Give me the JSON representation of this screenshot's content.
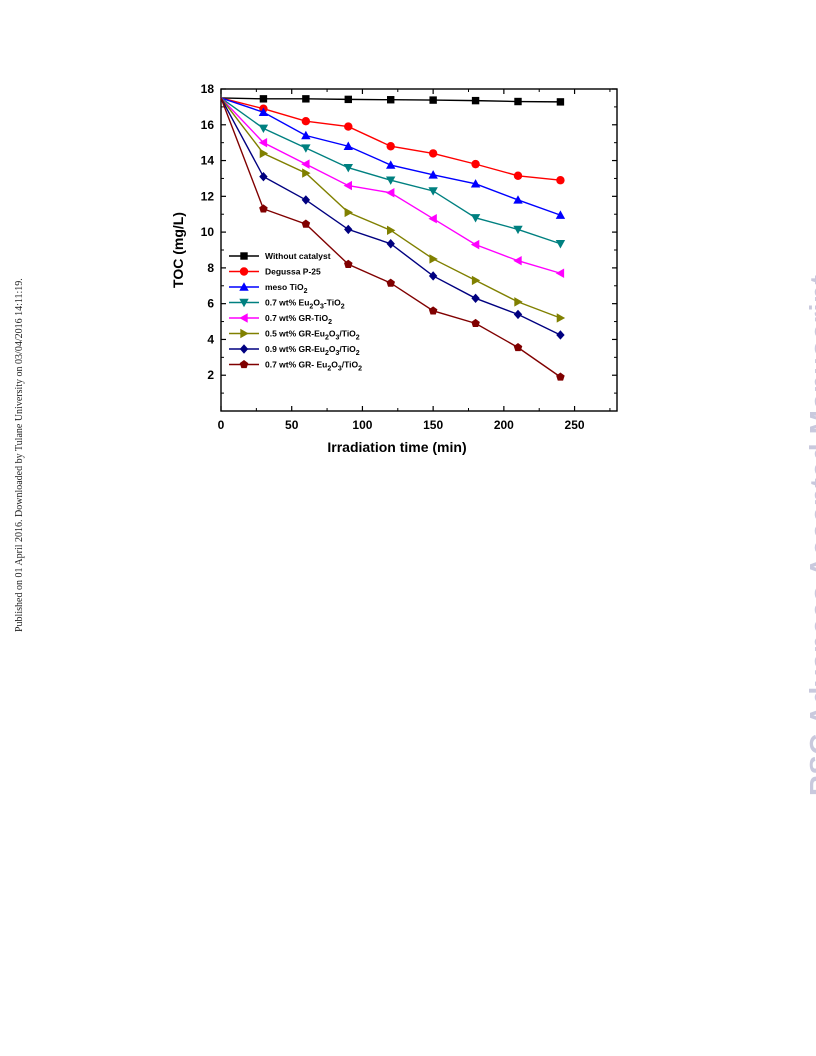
{
  "side_note": "Published on 01 April 2016. Downloaded by Tulane University on 03/04/2016 14:11:19.",
  "watermark": "RSC Advances Accepted Manuscript",
  "chart_data": {
    "type": "line",
    "title": "",
    "xlabel": "Irradiation time (min)",
    "ylabel": "TOC (mg/L)",
    "xlim": [
      0,
      280
    ],
    "ylim": [
      0,
      18
    ],
    "x_ticks": [
      0,
      50,
      100,
      150,
      200,
      250
    ],
    "y_ticks": [
      2,
      4,
      6,
      8,
      10,
      12,
      14,
      16,
      18
    ],
    "grid": false,
    "legend_position": "lower-left",
    "x": [
      0,
      30,
      60,
      90,
      120,
      150,
      180,
      210,
      240
    ],
    "series": [
      {
        "name": "Without catalyst",
        "color": "#000000",
        "marker": "square",
        "values": [
          17.5,
          17.45,
          17.45,
          17.42,
          17.4,
          17.38,
          17.35,
          17.3,
          17.28
        ]
      },
      {
        "name": "Degussa P-25",
        "color": "#ff0000",
        "marker": "circle",
        "values": [
          17.5,
          16.9,
          16.2,
          15.9,
          14.8,
          14.4,
          13.8,
          13.15,
          12.9
        ]
      },
      {
        "name": "meso TiO2",
        "name_parts": [
          {
            "t": "meso TiO"
          },
          {
            "t": "2",
            "sub": true
          }
        ],
        "color": "#0000ff",
        "marker": "triangle-up",
        "values": [
          17.5,
          16.7,
          15.4,
          14.8,
          13.75,
          13.2,
          12.7,
          11.8,
          10.95
        ]
      },
      {
        "name": "0.7 wt% Eu2O3-TiO2",
        "name_parts": [
          {
            "t": "0.7 wt% Eu"
          },
          {
            "t": "2",
            "sub": true
          },
          {
            "t": "O"
          },
          {
            "t": "3",
            "sub": true
          },
          {
            "t": "-TiO"
          },
          {
            "t": "2",
            "sub": true
          }
        ],
        "color": "#008080",
        "marker": "triangle-down",
        "values": [
          17.5,
          15.8,
          14.7,
          13.6,
          12.9,
          12.3,
          10.8,
          10.15,
          9.35
        ]
      },
      {
        "name": "0.7 wt% GR-TiO2",
        "name_parts": [
          {
            "t": "0.7 wt% GR-TiO"
          },
          {
            "t": "2",
            "sub": true
          }
        ],
        "color": "#ff00ff",
        "marker": "triangle-left",
        "values": [
          17.5,
          15.0,
          13.8,
          12.6,
          12.2,
          10.75,
          9.3,
          8.4,
          7.7
        ]
      },
      {
        "name": "0.5 wt% GR-Eu2O3/TiO2",
        "name_parts": [
          {
            "t": "0.5 wt% GR-Eu"
          },
          {
            "t": "2",
            "sub": true
          },
          {
            "t": "O"
          },
          {
            "t": "3",
            "sub": true
          },
          {
            "t": "/TiO"
          },
          {
            "t": "2",
            "sub": true
          }
        ],
        "color": "#808000",
        "marker": "triangle-right",
        "values": [
          17.5,
          14.4,
          13.3,
          11.1,
          10.1,
          8.5,
          7.3,
          6.1,
          5.2
        ]
      },
      {
        "name": "0.9 wt% GR-Eu2O3/TiO2",
        "name_parts": [
          {
            "t": "0.9 wt% GR-Eu"
          },
          {
            "t": "2",
            "sub": true
          },
          {
            "t": "O"
          },
          {
            "t": "3",
            "sub": true
          },
          {
            "t": "/TiO"
          },
          {
            "t": "2",
            "sub": true
          }
        ],
        "color": "#000080",
        "marker": "diamond",
        "values": [
          17.5,
          13.1,
          11.8,
          10.15,
          9.35,
          7.55,
          6.3,
          5.4,
          4.25
        ]
      },
      {
        "name": "0.7 wt% GR- Eu2O3/TiO2",
        "name_parts": [
          {
            "t": "0.7 wt% GR- Eu"
          },
          {
            "t": "2",
            "sub": true
          },
          {
            "t": "O"
          },
          {
            "t": "3",
            "sub": true
          },
          {
            "t": "/TiO"
          },
          {
            "t": "2",
            "sub": true
          }
        ],
        "color": "#800000",
        "marker": "pentagon",
        "values": [
          17.5,
          11.3,
          10.45,
          8.2,
          7.15,
          5.6,
          4.9,
          3.55,
          1.9
        ]
      }
    ]
  }
}
